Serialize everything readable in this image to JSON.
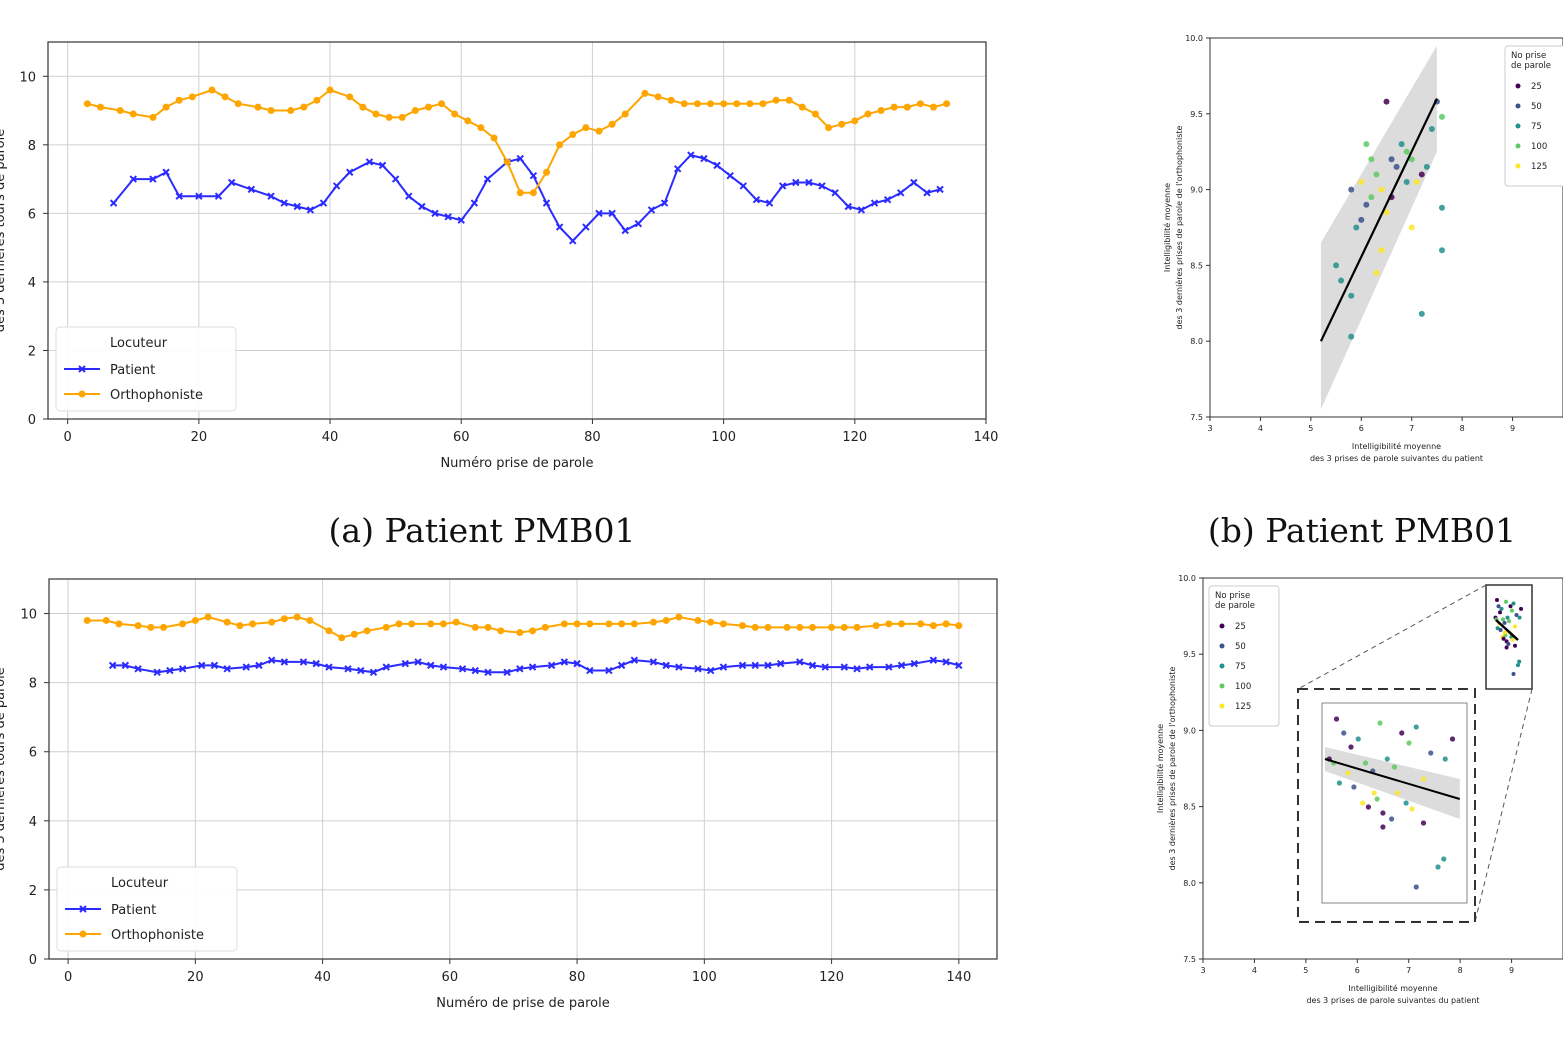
{
  "figure": {
    "captions": [
      "(a) Patient PMB01",
      "(b) Patient PMB01"
    ]
  },
  "chart_data": [
    {
      "type": "line",
      "id": "a",
      "xlabel": "Numéro prise de parole",
      "ylabel": "des 3 dernières tours de parole",
      "xlim": [
        -3,
        140
      ],
      "ylim": [
        0,
        11
      ],
      "xticks": [
        0,
        20,
        40,
        60,
        80,
        100,
        120,
        140
      ],
      "yticks": [
        0,
        2,
        4,
        6,
        8,
        10
      ],
      "grid": true,
      "legend": {
        "title": "Locuteur",
        "position": "lower-left"
      },
      "series": [
        {
          "name": "Patient",
          "color": "#2b2bff",
          "marker": "x",
          "x": [
            7,
            10,
            13,
            15,
            17,
            20,
            23,
            25,
            28,
            31,
            33,
            35,
            37,
            39,
            41,
            43,
            46,
            48,
            50,
            52,
            54,
            56,
            58,
            60,
            62,
            64,
            67,
            69,
            71,
            73,
            75,
            77,
            79,
            81,
            83,
            85,
            87,
            89,
            91,
            93,
            95,
            97,
            99,
            101,
            103,
            105,
            107,
            109,
            111,
            113,
            115,
            117,
            119,
            121,
            123,
            125,
            127,
            129,
            131,
            133
          ],
          "y": [
            6.3,
            7.0,
            7.0,
            7.2,
            6.5,
            6.5,
            6.5,
            6.9,
            6.7,
            6.5,
            6.3,
            6.2,
            6.1,
            6.3,
            6.8,
            7.2,
            7.5,
            7.4,
            7.0,
            6.5,
            6.2,
            6.0,
            5.9,
            5.8,
            6.3,
            7.0,
            7.5,
            7.6,
            7.1,
            6.3,
            5.6,
            5.2,
            5.6,
            6.0,
            6.0,
            5.5,
            5.7,
            6.1,
            6.3,
            7.3,
            7.7,
            7.6,
            7.4,
            7.1,
            6.8,
            6.4,
            6.3,
            6.8,
            6.9,
            6.9,
            6.8,
            6.6,
            6.2,
            6.1,
            6.3,
            6.4,
            6.6,
            6.9,
            6.6,
            6.7
          ]
        },
        {
          "name": "Orthophoniste",
          "color": "#ffa500",
          "marker": "o",
          "x": [
            3,
            5,
            8,
            10,
            13,
            15,
            17,
            19,
            22,
            24,
            26,
            29,
            31,
            34,
            36,
            38,
            40,
            43,
            45,
            47,
            49,
            51,
            53,
            55,
            57,
            59,
            61,
            63,
            65,
            67,
            69,
            71,
            73,
            75,
            77,
            79,
            81,
            83,
            85,
            88,
            90,
            92,
            94,
            96,
            98,
            100,
            102,
            104,
            106,
            108,
            110,
            112,
            114,
            116,
            118,
            120,
            122,
            124,
            126,
            128,
            130,
            132,
            134
          ],
          "y": [
            9.2,
            9.1,
            9.0,
            8.9,
            8.8,
            9.1,
            9.3,
            9.4,
            9.6,
            9.4,
            9.2,
            9.1,
            9.0,
            9.0,
            9.1,
            9.3,
            9.6,
            9.4,
            9.1,
            8.9,
            8.8,
            8.8,
            9.0,
            9.1,
            9.2,
            8.9,
            8.7,
            8.5,
            8.2,
            7.5,
            6.6,
            6.6,
            7.2,
            8.0,
            8.3,
            8.5,
            8.4,
            8.6,
            8.9,
            9.5,
            9.4,
            9.3,
            9.2,
            9.2,
            9.2,
            9.2,
            9.2,
            9.2,
            9.2,
            9.3,
            9.3,
            9.1,
            8.9,
            8.5,
            8.6,
            8.7,
            8.9,
            9.0,
            9.1,
            9.1,
            9.2,
            9.1,
            9.2
          ]
        }
      ]
    },
    {
      "type": "scatter",
      "id": "b",
      "xlabel": "Intelligibilité moyenne\ndes 3 prises de parole suivantes du patient",
      "ylabel": "Intelligibilité moyenne\ndes 3 dernières prises de parole de l'orthophoniste",
      "xlim": [
        3,
        10
      ],
      "ylim": [
        7.5,
        10.0
      ],
      "xticks": [
        3,
        4,
        5,
        6,
        7,
        8,
        9
      ],
      "yticks": [
        7.5,
        8.0,
        8.5,
        9.0,
        9.5,
        10.0
      ],
      "legend": {
        "title": "No prise de parole",
        "position": "top-right",
        "entries": [
          "25",
          "50",
          "75",
          "100",
          "125"
        ]
      },
      "regression": {
        "x": [
          5.2,
          7.5
        ],
        "y": [
          8.0,
          9.6
        ],
        "ci_upper": [
          8.65,
          9.95
        ],
        "ci_lower": [
          7.55,
          9.25
        ]
      },
      "points": [
        {
          "x": 6.5,
          "y": 9.58,
          "c": "#440154"
        },
        {
          "x": 5.8,
          "y": 9.0,
          "c": "#3b528b"
        },
        {
          "x": 6.0,
          "y": 8.8,
          "c": "#3b528b"
        },
        {
          "x": 6.1,
          "y": 8.9,
          "c": "#3b528b"
        },
        {
          "x": 5.9,
          "y": 8.75,
          "c": "#21918c"
        },
        {
          "x": 6.2,
          "y": 9.2,
          "c": "#5ec962"
        },
        {
          "x": 6.3,
          "y": 9.1,
          "c": "#5ec962"
        },
        {
          "x": 6.4,
          "y": 9.0,
          "c": "#fde725"
        },
        {
          "x": 6.6,
          "y": 8.95,
          "c": "#440154"
        },
        {
          "x": 6.8,
          "y": 9.3,
          "c": "#21918c"
        },
        {
          "x": 7.0,
          "y": 9.2,
          "c": "#5ec962"
        },
        {
          "x": 7.2,
          "y": 9.1,
          "c": "#440154"
        },
        {
          "x": 6.5,
          "y": 8.85,
          "c": "#fde725"
        },
        {
          "x": 6.1,
          "y": 9.3,
          "c": "#5ec962"
        },
        {
          "x": 6.7,
          "y": 9.15,
          "c": "#3b528b"
        },
        {
          "x": 7.4,
          "y": 9.4,
          "c": "#21918c"
        },
        {
          "x": 7.6,
          "y": 9.48,
          "c": "#5ec962"
        },
        {
          "x": 7.5,
          "y": 9.58,
          "c": "#3b528b"
        },
        {
          "x": 7.1,
          "y": 9.05,
          "c": "#fde725"
        },
        {
          "x": 6.9,
          "y": 9.25,
          "c": "#5ec962"
        },
        {
          "x": 5.5,
          "y": 8.5,
          "c": "#21918c"
        },
        {
          "x": 5.6,
          "y": 8.4,
          "c": "#21918c"
        },
        {
          "x": 5.8,
          "y": 8.3,
          "c": "#21918c"
        },
        {
          "x": 5.8,
          "y": 8.03,
          "c": "#21918c"
        },
        {
          "x": 6.3,
          "y": 8.45,
          "c": "#fde725"
        },
        {
          "x": 6.4,
          "y": 8.6,
          "c": "#fde725"
        },
        {
          "x": 7.0,
          "y": 8.75,
          "c": "#fde725"
        },
        {
          "x": 7.2,
          "y": 8.18,
          "c": "#21918c"
        },
        {
          "x": 7.6,
          "y": 8.6,
          "c": "#21918c"
        },
        {
          "x": 7.6,
          "y": 8.88,
          "c": "#21918c"
        },
        {
          "x": 6.2,
          "y": 8.95,
          "c": "#5ec962"
        },
        {
          "x": 6.9,
          "y": 9.05,
          "c": "#21918c"
        },
        {
          "x": 6.0,
          "y": 9.05,
          "c": "#fde725"
        },
        {
          "x": 6.6,
          "y": 9.2,
          "c": "#3b528b"
        },
        {
          "x": 7.3,
          "y": 9.15,
          "c": "#21918c"
        }
      ]
    },
    {
      "type": "line",
      "id": "c",
      "xlabel": "Numéro de prise de parole",
      "ylabel": "des 3 dernières tours de parole",
      "xlim": [
        -3,
        146
      ],
      "ylim": [
        0,
        11
      ],
      "xticks": [
        0,
        20,
        40,
        60,
        80,
        100,
        120,
        140
      ],
      "yticks": [
        0,
        2,
        4,
        6,
        8,
        10
      ],
      "grid": true,
      "legend": {
        "title": "Locuteur",
        "position": "lower-left"
      },
      "series": [
        {
          "name": "Patient",
          "color": "#2b2bff",
          "marker": "x",
          "x": [
            7,
            9,
            11,
            14,
            16,
            18,
            21,
            23,
            25,
            28,
            30,
            32,
            34,
            37,
            39,
            41,
            44,
            46,
            48,
            50,
            53,
            55,
            57,
            59,
            62,
            64,
            66,
            69,
            71,
            73,
            76,
            78,
            80,
            82,
            85,
            87,
            89,
            92,
            94,
            96,
            99,
            101,
            103,
            106,
            108,
            110,
            112,
            115,
            117,
            119,
            122,
            124,
            126,
            129,
            131,
            133,
            136,
            138,
            140
          ],
          "y": [
            8.5,
            8.5,
            8.4,
            8.3,
            8.35,
            8.4,
            8.5,
            8.5,
            8.4,
            8.45,
            8.5,
            8.65,
            8.6,
            8.6,
            8.55,
            8.45,
            8.4,
            8.35,
            8.3,
            8.45,
            8.55,
            8.6,
            8.5,
            8.45,
            8.4,
            8.35,
            8.3,
            8.3,
            8.4,
            8.45,
            8.5,
            8.6,
            8.55,
            8.35,
            8.35,
            8.5,
            8.65,
            8.6,
            8.5,
            8.45,
            8.4,
            8.35,
            8.45,
            8.5,
            8.5,
            8.5,
            8.55,
            8.6,
            8.5,
            8.45,
            8.45,
            8.4,
            8.45,
            8.45,
            8.5,
            8.55,
            8.65,
            8.6,
            8.5
          ]
        },
        {
          "name": "Orthophoniste",
          "color": "#ffa500",
          "marker": "o",
          "x": [
            3,
            6,
            8,
            11,
            13,
            15,
            18,
            20,
            22,
            25,
            27,
            29,
            32,
            34,
            36,
            38,
            41,
            43,
            45,
            47,
            50,
            52,
            54,
            57,
            59,
            61,
            64,
            66,
            68,
            71,
            73,
            75,
            78,
            80,
            82,
            85,
            87,
            89,
            92,
            94,
            96,
            99,
            101,
            103,
            106,
            108,
            110,
            113,
            115,
            117,
            120,
            122,
            124,
            127,
            129,
            131,
            134,
            136,
            138,
            140
          ],
          "y": [
            9.8,
            9.8,
            9.7,
            9.65,
            9.6,
            9.6,
            9.7,
            9.8,
            9.9,
            9.75,
            9.65,
            9.7,
            9.75,
            9.85,
            9.9,
            9.8,
            9.5,
            9.3,
            9.4,
            9.5,
            9.6,
            9.7,
            9.7,
            9.7,
            9.7,
            9.75,
            9.6,
            9.6,
            9.5,
            9.45,
            9.5,
            9.6,
            9.7,
            9.7,
            9.7,
            9.7,
            9.7,
            9.7,
            9.75,
            9.8,
            9.9,
            9.8,
            9.75,
            9.7,
            9.65,
            9.6,
            9.6,
            9.6,
            9.6,
            9.6,
            9.6,
            9.6,
            9.6,
            9.65,
            9.7,
            9.7,
            9.7,
            9.65,
            9.7,
            9.65
          ]
        }
      ]
    },
    {
      "type": "scatter",
      "id": "d",
      "xlabel": "Intelligibilité moyenne\ndes 3 prises de parole suivantes du patient",
      "ylabel": "Intelligibilité moyenne\ndes 3 dernières prises de parole de l'orthophoniste",
      "xlim": [
        3,
        10
      ],
      "ylim": [
        7.5,
        10.0
      ],
      "xticks": [
        3,
        4,
        5,
        6,
        7,
        8,
        9
      ],
      "yticks": [
        7.5,
        8.0,
        8.5,
        9.0,
        9.5,
        10.0
      ],
      "legend": {
        "title": "No prise\nde parole",
        "position": "top-left",
        "entries": [
          "25",
          "50",
          "75",
          "100",
          "125"
        ]
      },
      "inset": {
        "points": [
          {
            "x": 0.05,
            "y": 0.72,
            "c": "#440154"
          },
          {
            "x": 0.1,
            "y": 0.92,
            "c": "#440154"
          },
          {
            "x": 0.15,
            "y": 0.85,
            "c": "#3b528b"
          },
          {
            "x": 0.2,
            "y": 0.78,
            "c": "#440154"
          },
          {
            "x": 0.25,
            "y": 0.82,
            "c": "#21918c"
          },
          {
            "x": 0.3,
            "y": 0.7,
            "c": "#5ec962"
          },
          {
            "x": 0.35,
            "y": 0.66,
            "c": "#3b528b"
          },
          {
            "x": 0.4,
            "y": 0.9,
            "c": "#5ec962"
          },
          {
            "x": 0.45,
            "y": 0.72,
            "c": "#21918c"
          },
          {
            "x": 0.5,
            "y": 0.68,
            "c": "#5ec962"
          },
          {
            "x": 0.55,
            "y": 0.85,
            "c": "#440154"
          },
          {
            "x": 0.6,
            "y": 0.8,
            "c": "#5ec962"
          },
          {
            "x": 0.65,
            "y": 0.88,
            "c": "#21918c"
          },
          {
            "x": 0.7,
            "y": 0.62,
            "c": "#fde725"
          },
          {
            "x": 0.75,
            "y": 0.75,
            "c": "#3b528b"
          },
          {
            "x": 0.85,
            "y": 0.72,
            "c": "#21918c"
          },
          {
            "x": 0.9,
            "y": 0.82,
            "c": "#440154"
          },
          {
            "x": 0.12,
            "y": 0.6,
            "c": "#21918c"
          },
          {
            "x": 0.22,
            "y": 0.58,
            "c": "#3b528b"
          },
          {
            "x": 0.28,
            "y": 0.5,
            "c": "#fde725"
          },
          {
            "x": 0.32,
            "y": 0.48,
            "c": "#440154"
          },
          {
            "x": 0.38,
            "y": 0.52,
            "c": "#5ec962"
          },
          {
            "x": 0.42,
            "y": 0.45,
            "c": "#440154"
          },
          {
            "x": 0.48,
            "y": 0.42,
            "c": "#3b528b"
          },
          {
            "x": 0.52,
            "y": 0.55,
            "c": "#fde725"
          },
          {
            "x": 0.58,
            "y": 0.5,
            "c": "#21918c"
          },
          {
            "x": 0.62,
            "y": 0.47,
            "c": "#fde725"
          },
          {
            "x": 0.18,
            "y": 0.65,
            "c": "#fde725"
          },
          {
            "x": 0.08,
            "y": 0.7,
            "c": "#5ec962"
          },
          {
            "x": 0.8,
            "y": 0.18,
            "c": "#21918c"
          },
          {
            "x": 0.84,
            "y": 0.22,
            "c": "#21918c"
          },
          {
            "x": 0.65,
            "y": 0.08,
            "c": "#3b528b"
          },
          {
            "x": 0.42,
            "y": 0.38,
            "c": "#440154"
          },
          {
            "x": 0.36,
            "y": 0.55,
            "c": "#fde725"
          },
          {
            "x": 0.7,
            "y": 0.4,
            "c": "#440154"
          }
        ],
        "regression": {
          "x": [
            0.02,
            0.95
          ],
          "y": [
            0.72,
            0.52
          ]
        }
      }
    }
  ]
}
